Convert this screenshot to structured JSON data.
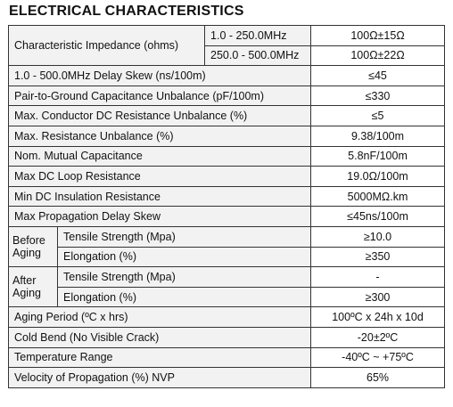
{
  "title": "ELECTRICAL CHARACTERISTICS",
  "impedance": {
    "label": "Characteristic Impedance (ohms)",
    "range1": "1.0 - 250.0MHz",
    "value1": "100Ω±15Ω",
    "range2": "250.0 - 500.0MHz",
    "value2": "100Ω±22Ω"
  },
  "rows_a": [
    {
      "label": "1.0 - 500.0MHz Delay Skew (ns/100m)",
      "value": "≤45"
    },
    {
      "label": "Pair-to-Ground Capacitance Unbalance (pF/100m)",
      "value": "≤330"
    },
    {
      "label": "Max. Conductor DC Resistance Unbalance (%)",
      "value": "≤5"
    },
    {
      "label": "Max. Resistance Unbalance (%)",
      "value": "9.38/100m"
    },
    {
      "label": "Nom. Mutual Capacitance",
      "value": "5.8nF/100m"
    },
    {
      "label": "Max DC Loop Resistance",
      "value": "19.0Ω/100m"
    },
    {
      "label": "Min DC Insulation Resistance",
      "value": "5000MΩ.km"
    },
    {
      "label": "Max Propagation Delay Skew",
      "value": "≤45ns/100m"
    }
  ],
  "before_aging": {
    "label": "Before Aging",
    "tensile_label": "Tensile Strength (Mpa)",
    "tensile_value": "≥10.0",
    "elongation_label": "Elongation (%)",
    "elongation_value": "≥350"
  },
  "after_aging": {
    "label": "After Aging",
    "tensile_label": "Tensile Strength (Mpa)",
    "tensile_value": "-",
    "elongation_label": "Elongation (%)",
    "elongation_value": "≥300"
  },
  "rows_b": [
    {
      "label": "Aging Period (ºC x hrs)",
      "value": "100ºC x 24h x 10d"
    },
    {
      "label": "Cold Bend (No Visible Crack)",
      "value": "-20±2ºC"
    },
    {
      "label": "Temperature Range",
      "value": "-40ºC ~ +75ºC"
    },
    {
      "label": "Velocity of Propagation (%) NVP",
      "value": "65%"
    }
  ]
}
